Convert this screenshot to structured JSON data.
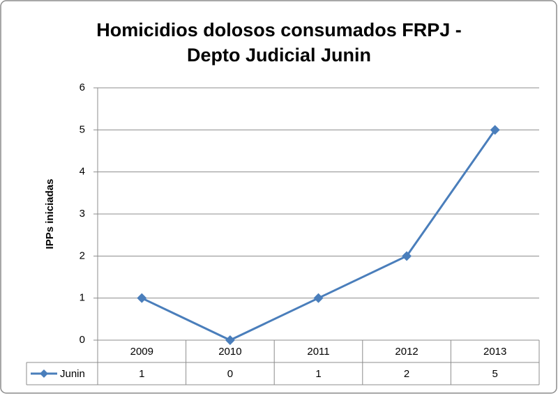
{
  "chart_data": {
    "type": "line",
    "title": [
      "Homicidios dolosos consumados FRPJ -",
      "Depto Judicial Junin"
    ],
    "y_label": "IPPs iniciadas",
    "categories": [
      "2009",
      "2010",
      "2011",
      "2012",
      "2013"
    ],
    "series": [
      {
        "name": "Junin",
        "color": "#4a7ebb",
        "values": [
          1,
          0,
          1,
          2,
          5
        ]
      }
    ],
    "ylim": [
      0,
      6
    ],
    "yticks": [
      0,
      1,
      2,
      3,
      4,
      5,
      6
    ],
    "grid": true,
    "data_table": true
  }
}
